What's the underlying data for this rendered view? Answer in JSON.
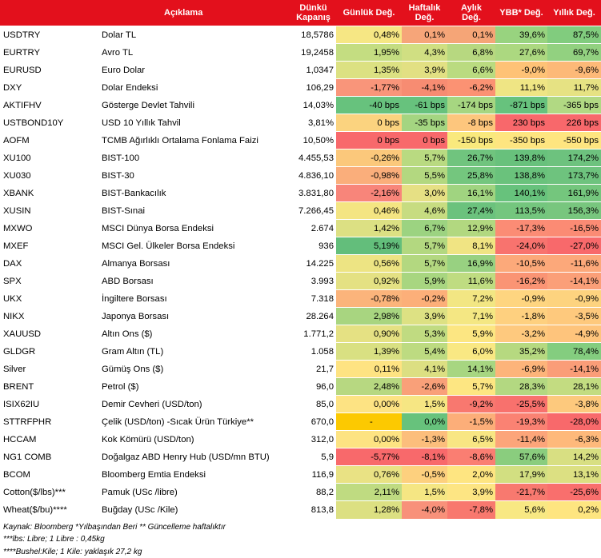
{
  "header": {
    "code": "",
    "desc": "Açıklama",
    "close": "Dünkü Kapanış",
    "daily": "Günlük Değ.",
    "weekly": "Haftalık Değ.",
    "monthly": "Aylık Değ.",
    "ytd": "YBB* Değ.",
    "yearly": "Yıllık Değ."
  },
  "rows": [
    {
      "code": "USDTRY",
      "desc": "Dolar TL",
      "close": "18,5786",
      "daily": "0,48%",
      "weekly": "0,1%",
      "monthly": "0,1%",
      "ytd": "39,6%",
      "yearly": "87,5%",
      "c": [
        "#f6e784",
        "#f6a579",
        "#f5a577",
        "#98d37f",
        "#81cc7e"
      ]
    },
    {
      "code": "EURTRY",
      "desc": "Avro TL",
      "close": "19,2458",
      "daily": "1,95%",
      "weekly": "4,3%",
      "monthly": "6,8%",
      "ytd": "27,6%",
      "yearly": "69,7%",
      "c": [
        "#c4dd81",
        "#d0df82",
        "#b7d880",
        "#acd880",
        "#92d180"
      ]
    },
    {
      "code": "EURUSD",
      "desc": "Euro Dolar",
      "close": "1,0347",
      "daily": "1,35%",
      "weekly": "3,9%",
      "monthly": "6,6%",
      "ytd": "-9,0%",
      "yearly": "-9,6%",
      "c": [
        "#dce182",
        "#e2e083",
        "#badb80",
        "#fec276",
        "#fdb978"
      ]
    },
    {
      "code": "DXY",
      "desc": "Dolar Endeksi",
      "close": "106,29",
      "daily": "-1,77%",
      "weekly": "-4,1%",
      "monthly": "-6,2%",
      "ytd": "11,1%",
      "yearly": "11,7%",
      "c": [
        "#f9957a",
        "#f78c72",
        "#fb9273",
        "#efe584",
        "#e6e283"
      ]
    },
    {
      "code": "AKTIFHV",
      "desc": "Gösterge Devlet Tahvili",
      "close": "14,03%",
      "daily": "-40 bps",
      "weekly": "-61 bps",
      "monthly": "-174 bps",
      "ytd": "-871 bps",
      "yearly": "-365 bps",
      "c": [
        "#67c27d",
        "#67c27d",
        "#a6d681",
        "#67c27d",
        "#b1d983"
      ]
    },
    {
      "code": "USTBOND10Y",
      "desc": "USD 10 Yıllık Tahvil",
      "close": "3,81%",
      "daily": "0 bps",
      "weekly": "-35 bps",
      "monthly": "-8 bps",
      "ytd": "230 bps",
      "yearly": "226 bps",
      "c": [
        "#fbd37f",
        "#a4d581",
        "#fdc67d",
        "#f8686b",
        "#f8686b"
      ]
    },
    {
      "code": "AOFM",
      "desc": "TCMB Ağırlıklı Ortalama Fonlama Faizi",
      "close": "10,50%",
      "daily": "0 bps",
      "weekly": "0 bps",
      "monthly": "-150 bps",
      "ytd": "-350 bps",
      "yearly": "-550 bps",
      "c": [
        "#f8696b",
        "#f8696b",
        "#f9e97d",
        "#fee580",
        "#fee580"
      ]
    },
    {
      "code": "XU100",
      "desc": "BIST-100",
      "close": "4.455,53",
      "daily": "-0,26%",
      "weekly": "5,7%",
      "monthly": "26,7%",
      "ytd": "139,8%",
      "yearly": "174,2%",
      "c": [
        "#fbc87b",
        "#b9da81",
        "#70c47e",
        "#68c17c",
        "#6dc27e"
      ]
    },
    {
      "code": "XU030",
      "desc": "BIST-30",
      "close": "4.836,10",
      "daily": "-0,98%",
      "weekly": "5,5%",
      "monthly": "25,8%",
      "ytd": "138,8%",
      "yearly": "173,7%",
      "c": [
        "#faae7b",
        "#b3d880",
        "#74c67e",
        "#6ac27c",
        "#6ec37e"
      ]
    },
    {
      "code": "XBANK",
      "desc": "BIST-Bankacılık",
      "close": "3.831,80",
      "daily": "-2,16%",
      "weekly": "3,0%",
      "monthly": "16,1%",
      "ytd": "140,1%",
      "yearly": "161,9%",
      "c": [
        "#f8857a",
        "#e6e084",
        "#a0d480",
        "#67c27c",
        "#74c67d"
      ]
    },
    {
      "code": "XUSIN",
      "desc": "BIST-Sınai",
      "close": "7.266,45",
      "daily": "0,46%",
      "weekly": "4,6%",
      "monthly": "27,4%",
      "ytd": "113,5%",
      "yearly": "156,3%",
      "c": [
        "#f4e582",
        "#c7dc81",
        "#6bc27d",
        "#74c67e",
        "#78c67e"
      ]
    },
    {
      "code": "MXWO",
      "desc": "MSCI Dünya Borsa Endeksi",
      "close": "2.674",
      "daily": "1,42%",
      "weekly": "6,7%",
      "monthly": "12,9%",
      "ytd": "-17,3%",
      "yearly": "-16,5%",
      "c": [
        "#dce083",
        "#9cd381",
        "#b2d880",
        "#fb8c75",
        "#fb8b74"
      ]
    },
    {
      "code": "MXEF",
      "desc": "MSCI Gel. Ülkeler Borsa Endeksi",
      "close": "936",
      "daily": "5,19%",
      "weekly": "5,7%",
      "monthly": "8,1%",
      "ytd": "-24,0%",
      "yearly": "-27,0%",
      "c": [
        "#63be7b",
        "#b3d880",
        "#f0e483",
        "#f8736e",
        "#f8696b"
      ]
    },
    {
      "code": "DAX",
      "desc": "Almanya Borsası",
      "close": "14.225",
      "daily": "0,56%",
      "weekly": "5,7%",
      "monthly": "16,9%",
      "ytd": "-10,5%",
      "yearly": "-11,6%",
      "c": [
        "#ede483",
        "#b3d880",
        "#98d181",
        "#fca97a",
        "#fca87a"
      ]
    },
    {
      "code": "SPX",
      "desc": "ABD Borsası",
      "close": "3.993",
      "daily": "0,92%",
      "weekly": "5,9%",
      "monthly": "11,6%",
      "ytd": "-16,2%",
      "yearly": "-14,1%",
      "c": [
        "#e4e183",
        "#a8d680",
        "#bfdc81",
        "#fa9474",
        "#fb9f78"
      ]
    },
    {
      "code": "UKX",
      "desc": "İngiltere Borsası",
      "close": "7.318",
      "daily": "-0,78%",
      "weekly": "-0,2%",
      "monthly": "7,2%",
      "ytd": "-0,9%",
      "yearly": "-0,9%",
      "c": [
        "#fbb47b",
        "#fcaf79",
        "#f2e683",
        "#fed580",
        "#fdd37f"
      ]
    },
    {
      "code": "NIKX",
      "desc": "Japonya Borsası",
      "close": "28.264",
      "daily": "2,98%",
      "weekly": "3,9%",
      "monthly": "7,1%",
      "ytd": "-1,8%",
      "yearly": "-3,5%",
      "c": [
        "#a8d580",
        "#dde183",
        "#f4e783",
        "#fed07f",
        "#fec97d"
      ]
    },
    {
      "code": "XAUUSD",
      "desc": "Altın Ons ($)",
      "close": "1.771,2",
      "daily": "0,90%",
      "weekly": "5,3%",
      "monthly": "5,9%",
      "ytd": "-3,2%",
      "yearly": "-4,9%",
      "c": [
        "#e5e183",
        "#c0db81",
        "#fce682",
        "#fec97e",
        "#fec47c"
      ]
    },
    {
      "code": "GLDGR",
      "desc": "Gram Altın (TL)",
      "close": "1.058",
      "daily": "1,39%",
      "weekly": "5,4%",
      "monthly": "6,0%",
      "ytd": "35,2%",
      "yearly": "78,4%",
      "c": [
        "#d9e082",
        "#bddb81",
        "#f9e883",
        "#b6d980",
        "#84cd7f"
      ]
    },
    {
      "code": "Silver",
      "desc": "Gümüş Ons ($)",
      "close": "21,7",
      "daily": "0,11%",
      "weekly": "4,1%",
      "monthly": "14,1%",
      "ytd": "-6,9%",
      "yearly": "-14,1%",
      "c": [
        "#fee382",
        "#dcdf82",
        "#a7d681",
        "#fdb47a",
        "#fa9d78"
      ]
    },
    {
      "code": "BRENT",
      "desc": "Petrol ($)",
      "close": "96,0",
      "daily": "2,48%",
      "weekly": "-2,6%",
      "monthly": "5,7%",
      "ytd": "28,3%",
      "yearly": "28,1%",
      "c": [
        "#b7d881",
        "#f9a079",
        "#fde682",
        "#b3d881",
        "#c3dc81"
      ]
    },
    {
      "code": "ISIX62IU",
      "desc": "Demir Cevheri (USD/ton)",
      "close": "85,0",
      "daily": "0,00%",
      "weekly": "1,5%",
      "monthly": "-9,2%",
      "ytd": "-25,5%",
      "yearly": "-3,8%",
      "c": [
        "#fde383",
        "#f6e683",
        "#f8786f",
        "#f8716d",
        "#fdc97d"
      ]
    },
    {
      "code": "STTRFPHR",
      "desc": "Çelik (USD/ton) -Sıcak Ürün Türkiye**",
      "close": "670,0",
      "daily": "-",
      "weekly": "0,0%",
      "monthly": "-1,5%",
      "ytd": "-19,3%",
      "yearly": "-28,0%",
      "c": [
        "#fcc901",
        "#67c27c",
        "#fcae79",
        "#fa8273",
        "#f8696b"
      ]
    },
    {
      "code": "HCCAM",
      "desc": "Kok Kömürü (USD/ton)",
      "close": "312,0",
      "daily": "0,00%",
      "weekly": "-1,3%",
      "monthly": "6,5%",
      "ytd": "-11,4%",
      "yearly": "-6,3%",
      "c": [
        "#fde382",
        "#fcbe7c",
        "#f8e683",
        "#fca57a",
        "#feb97b"
      ]
    },
    {
      "code": "NG1 COMB",
      "desc": "Doğalgaz ABD Henry Hub (USD/mn BTU)",
      "close": "5,9",
      "daily": "-5,77%",
      "weekly": "-8,1%",
      "monthly": "-8,6%",
      "ytd": "57,6%",
      "yearly": "14,2%",
      "c": [
        "#f8696b",
        "#f8696b",
        "#fa7e72",
        "#8acd7e",
        "#d8df82"
      ]
    },
    {
      "code": "BCOM",
      "desc": "Bloomberg Emtia Endeksi",
      "close": "116,9",
      "daily": "0,76%",
      "weekly": "-0,5%",
      "monthly": "2,0%",
      "ytd": "17,9%",
      "yearly": "13,1%",
      "c": [
        "#e9e284",
        "#fdd07e",
        "#fee581",
        "#d2df81",
        "#dce082"
      ]
    },
    {
      "code": "Cotton($/lbs)***",
      "desc": "Pamuk (USc /libre)",
      "close": "88,2",
      "daily": "2,11%",
      "weekly": "1,5%",
      "monthly": "3,9%",
      "ytd": "-21,7%",
      "yearly": "-25,6%",
      "c": [
        "#bfdb81",
        "#f5e683",
        "#fde583",
        "#f8796f",
        "#f96f6d"
      ]
    },
    {
      "code": "Wheat($/bu)****",
      "desc": "Buğday (USc /Kile)",
      "close": "813,8",
      "daily": "1,28%",
      "weekly": "-4,0%",
      "monthly": "-7,8%",
      "ytd": "5,6%",
      "yearly": "0,2%",
      "c": [
        "#dce082",
        "#f8917a",
        "#f8786e",
        "#f8e883",
        "#fee580"
      ]
    }
  ],
  "footer": [
    "Kaynak: Bloomberg *Yılbaşından Beri  ** Güncelleme haftalıktır",
    "***lbs: Libre; 1 Libre : 0,45kg",
    "****Bushel:Kile; 1 Kile: yaklaşık 27,2 kg"
  ]
}
